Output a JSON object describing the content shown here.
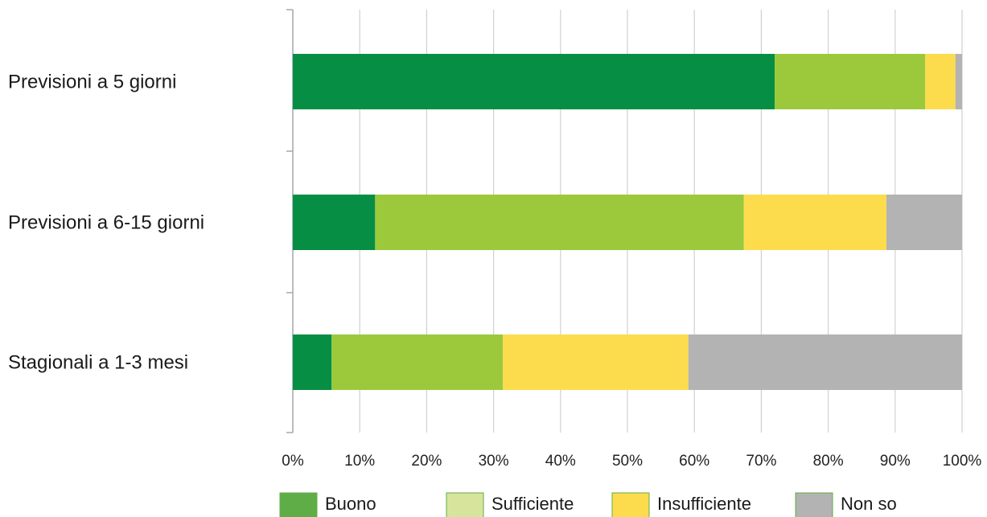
{
  "chart_data": {
    "type": "bar",
    "orientation": "horizontal",
    "stacked": true,
    "categories": [
      "Previsioni a 5 giorni",
      "Previsioni a 6-15 giorni",
      "Stagionali a 1-3 mesi"
    ],
    "series": [
      {
        "name": "Buono",
        "values": [
          72,
          12.3,
          5.8
        ],
        "color": "#078e45"
      },
      {
        "name": "Sufficiente",
        "values": [
          22.5,
          55.1,
          25.6
        ],
        "color": "#9cc93b"
      },
      {
        "name": "Insufficiente",
        "values": [
          4.5,
          21.3,
          27.7
        ],
        "color": "#fcdc4d"
      },
      {
        "name": "Non so",
        "values": [
          1.0,
          11.3,
          40.9
        ],
        "color": "#b3b3b3"
      }
    ],
    "x_ticks": [
      "0%",
      "10%",
      "20%",
      "30%",
      "40%",
      "50%",
      "60%",
      "70%",
      "80%",
      "90%",
      "100%"
    ],
    "xlim": [
      0,
      100
    ],
    "grid": true,
    "legend_position": "bottom",
    "legend": [
      {
        "label": "Buono",
        "color": "#5fad47"
      },
      {
        "label": "Sufficiente",
        "color": "#d7e59c"
      },
      {
        "label": "Insufficiente",
        "color": "#fcdc4d"
      },
      {
        "label": "Non so",
        "color": "#b3b3b3"
      }
    ],
    "title": "",
    "xlabel": "",
    "ylabel": ""
  },
  "colors": {
    "grid": "#d0d0d0",
    "axis": "#a8a8a8"
  }
}
